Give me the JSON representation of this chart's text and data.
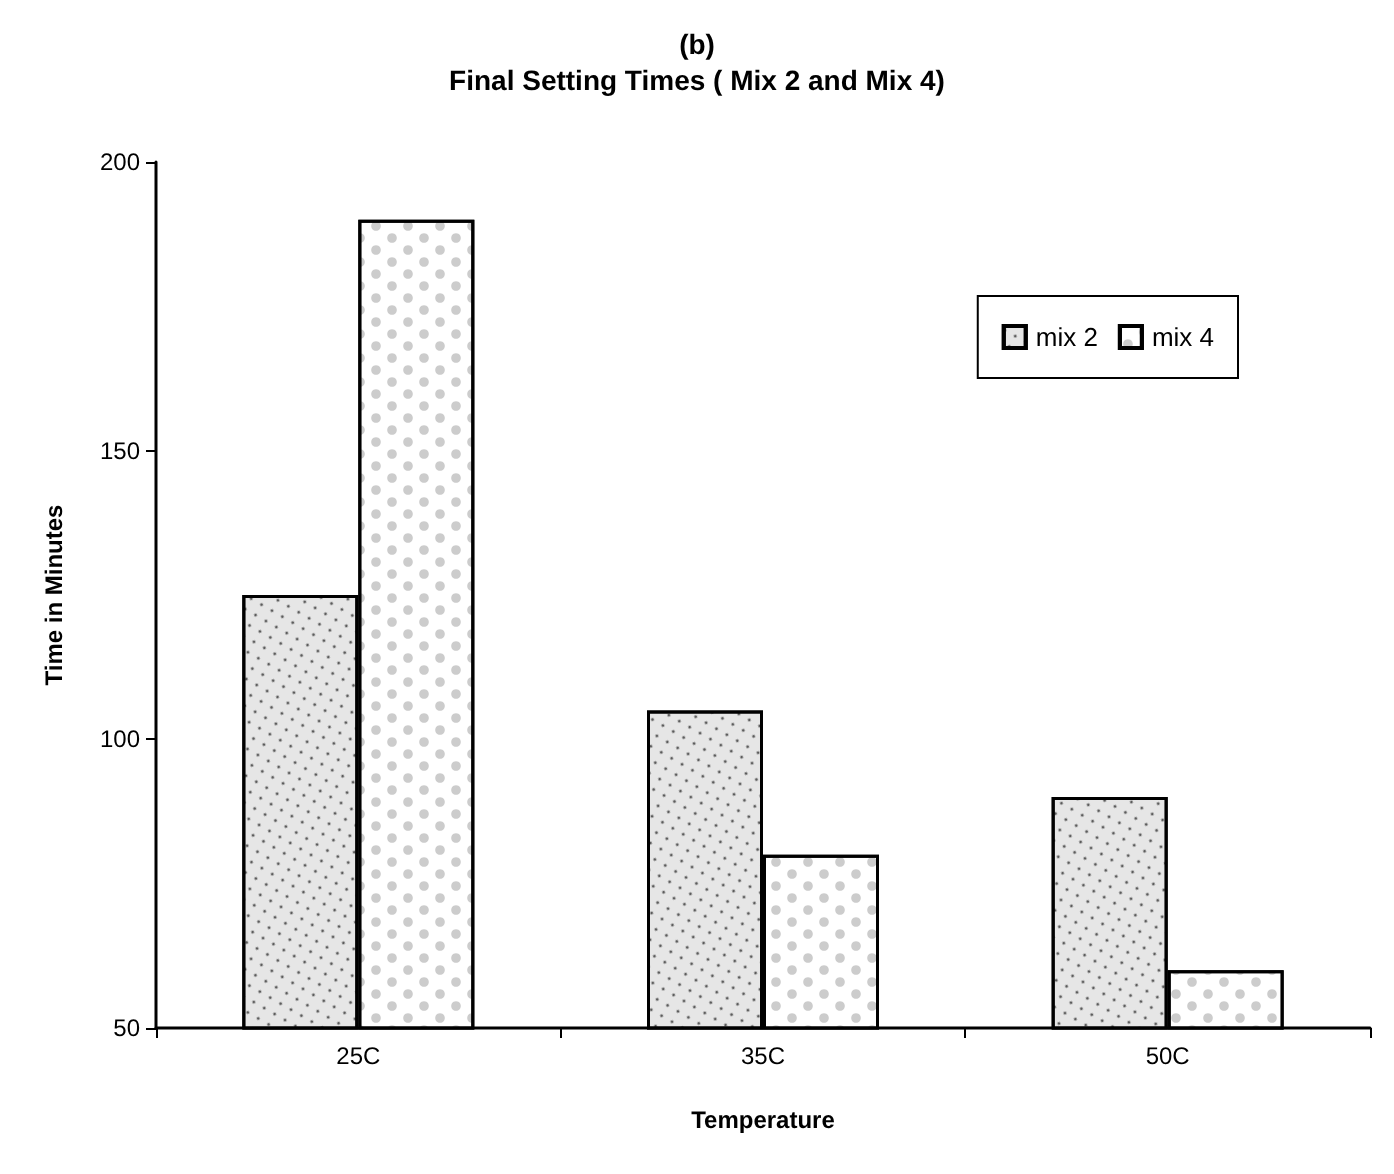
{
  "chart_data": {
    "type": "bar",
    "title": "(b)",
    "subtitle": "Final Setting Times ( Mix 2 and Mix 4)",
    "xlabel": "Temperature",
    "ylabel": "Time in Minutes",
    "categories": [
      "25C",
      "35C",
      "50C"
    ],
    "series": [
      {
        "name": "mix 2",
        "color": "#e6e6e6",
        "values": [
          125,
          105,
          90
        ]
      },
      {
        "name": "mix 4",
        "color": "#ffffff",
        "values": [
          190,
          80,
          60
        ]
      }
    ],
    "ylim": [
      50,
      200
    ],
    "yticks": [
      50,
      100,
      150,
      200
    ],
    "grid": false,
    "legend": "top right"
  }
}
